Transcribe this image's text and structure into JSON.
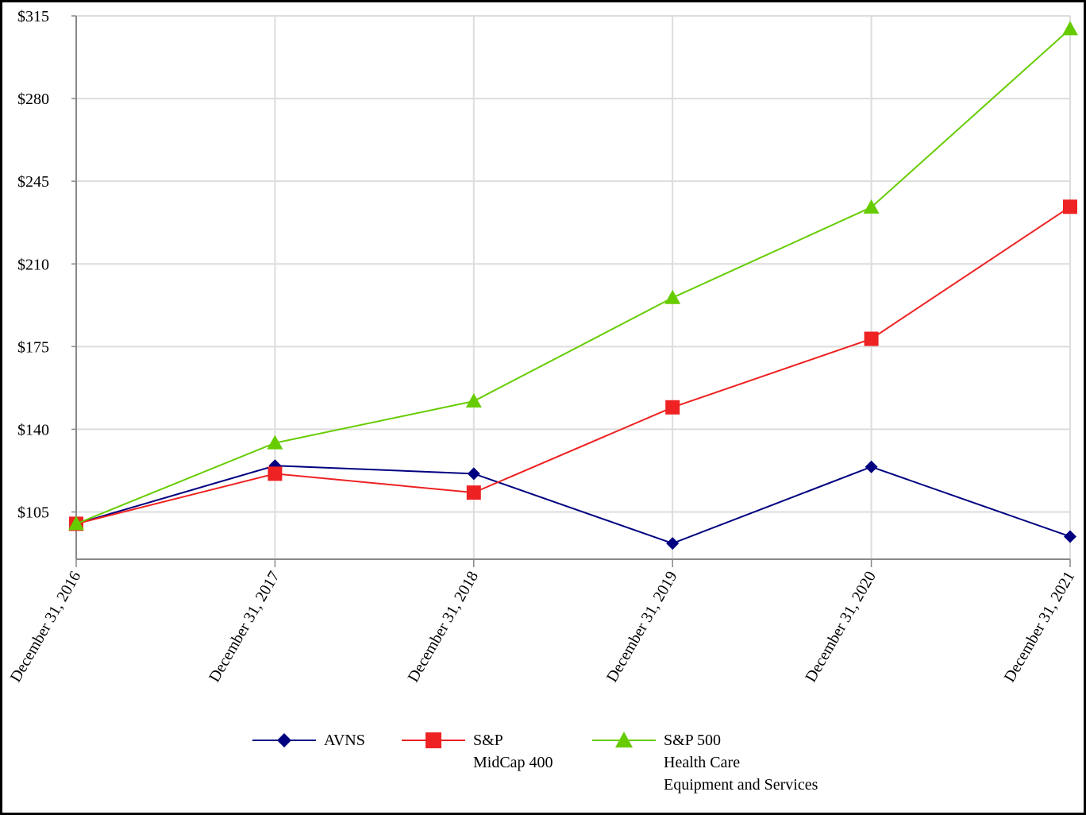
{
  "chart_data": {
    "type": "line",
    "categories": [
      "December 31, 2016",
      "December 31, 2017",
      "December 31, 2018",
      "December 31, 2019",
      "December 31, 2020",
      "December 31, 2021"
    ],
    "y_ticks": [
      "$105",
      "$140",
      "$175",
      "$210",
      "$245",
      "$280",
      "$315"
    ],
    "y_tick_values": [
      105,
      140,
      175,
      210,
      245,
      280,
      315
    ],
    "ylim": [
      85,
      315
    ],
    "grid": true,
    "legend_position": "bottom",
    "series": [
      {
        "name": "AVNS",
        "name_lines": [
          "AVNS"
        ],
        "color": "#000080",
        "marker": "diamond",
        "values": [
          100,
          124.6,
          121.2,
          91.7,
          124.1,
          94.6
        ]
      },
      {
        "name": "S&P MidCap 400",
        "name_lines": [
          "S&P",
          "MidCap 400"
        ],
        "color": "#ee2222",
        "marker": "square",
        "values": [
          100,
          121.2,
          113.2,
          149.3,
          178.3,
          234.2
        ]
      },
      {
        "name": "S&P 500 Health Care Equipment and Services",
        "name_lines": [
          "S&P 500",
          "Health Care",
          "Equipment and Services"
        ],
        "color": "#66cc00",
        "marker": "triangle",
        "values": [
          100,
          134.2,
          151.9,
          195.7,
          234.0,
          309.5
        ]
      }
    ]
  }
}
